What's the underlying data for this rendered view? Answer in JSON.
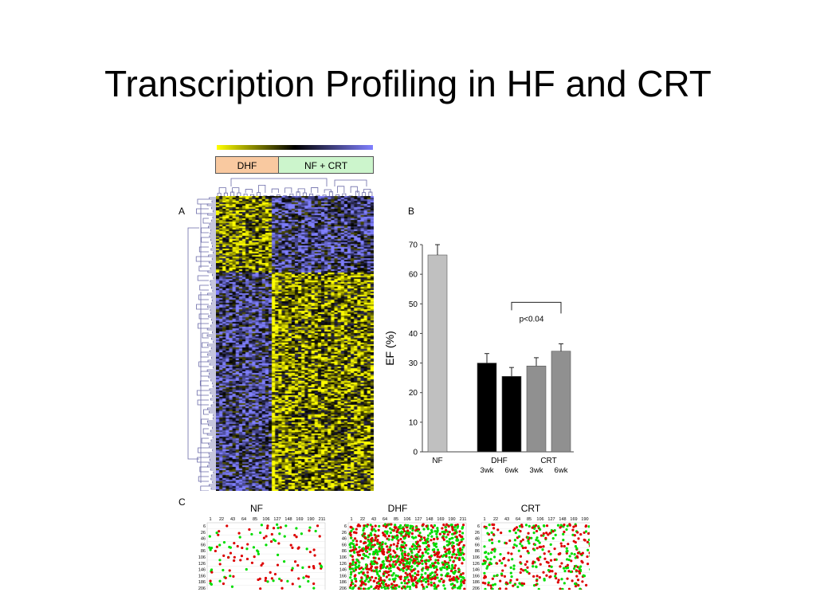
{
  "slide": {
    "title": "Transcription Profiling in HF and CRT"
  },
  "panel_labels": {
    "a": "A",
    "b": "B",
    "c": "C"
  },
  "heatmap": {
    "groups": [
      "DHF",
      "NF + CRT"
    ],
    "group_colors": {
      "DHF": "#f9c9a0",
      "NF + CRT": "#ccf5cc"
    },
    "colorscale": [
      "#ffff00",
      "#000000",
      "#8080ff"
    ]
  },
  "chart_data": {
    "type": "bar",
    "categories": [
      "NF",
      "DHF 3wk",
      "DHF 6wk",
      "CRT 3wk",
      "CRT 6wk"
    ],
    "values": [
      66.5,
      30,
      25.5,
      29,
      34
    ],
    "errors": [
      3.5,
      3.2,
      3,
      2.8,
      2.5
    ],
    "bar_colors": [
      "#c0c0c0",
      "#000000",
      "#000000",
      "#909090",
      "#909090"
    ],
    "group_labels": [
      "NF",
      "DHF",
      "CRT"
    ],
    "sub_labels": [
      "3wk",
      "6wk",
      "3wk",
      "6wk"
    ],
    "ylabel": "EF (%)",
    "ylim": [
      0,
      70
    ],
    "yticks": [
      0,
      10,
      20,
      30,
      40,
      50,
      60,
      70
    ],
    "annotation": "p<0.04"
  },
  "scatter_panels": {
    "x_ticks": [
      "1",
      "22",
      "43",
      "64",
      "85",
      "106",
      "127",
      "148",
      "169",
      "190",
      "211"
    ],
    "y_ticks": [
      "6",
      "26",
      "46",
      "66",
      "86",
      "106",
      "126",
      "146",
      "166",
      "186",
      "206"
    ],
    "panels": [
      {
        "name": "NF",
        "density": 0.12
      },
      {
        "name": "DHF",
        "density": 0.95
      },
      {
        "name": "CRT",
        "density": 0.35
      }
    ],
    "colors": {
      "up": "#00dd00",
      "down": "#dd0000"
    }
  }
}
